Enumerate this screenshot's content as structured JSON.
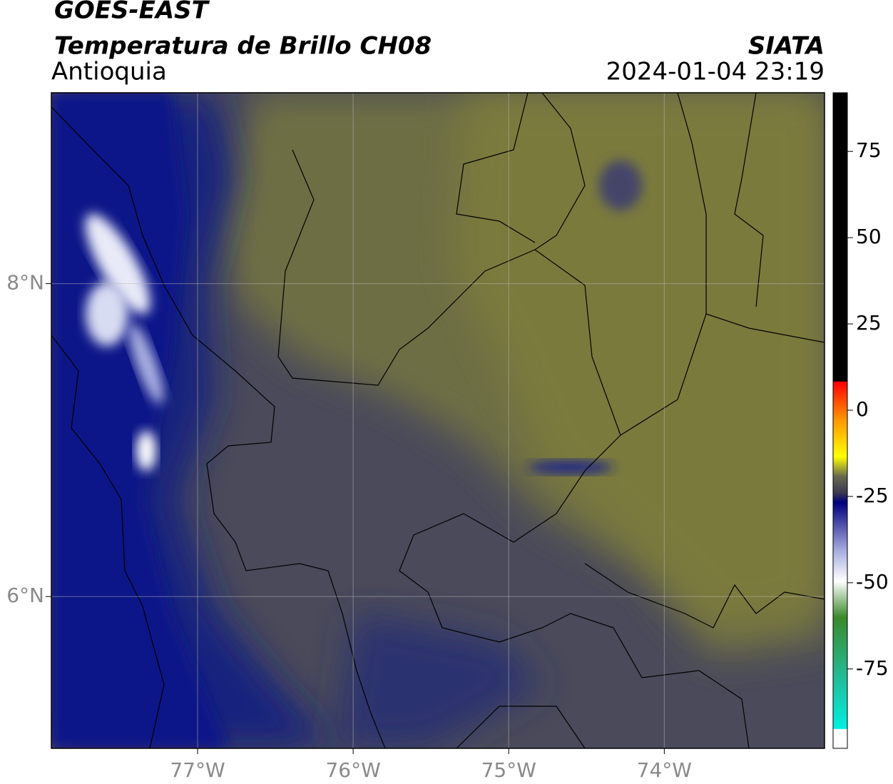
{
  "header": {
    "title": "GOES-EAST",
    "subtitle": "Temperatura de Brillo CH08",
    "region": "Antioquia",
    "source": "SIATA",
    "timestamp": "2024-01-04 23:19"
  },
  "map": {
    "xlim": [
      -77.94,
      -72.97
    ],
    "ylim": [
      5.03,
      9.22
    ],
    "xticks": [
      {
        "value": -77,
        "label": "77°W"
      },
      {
        "value": -76,
        "label": "76°W"
      },
      {
        "value": -75,
        "label": "75°W"
      },
      {
        "value": -74,
        "label": "74°W"
      }
    ],
    "yticks": [
      {
        "value": 6,
        "label": "6°N"
      },
      {
        "value": 8,
        "label": "8°N"
      }
    ],
    "grid": true
  },
  "colorbar": {
    "lim": [
      -98,
      92
    ],
    "ticks": [
      -75,
      -50,
      -25,
      0,
      25,
      50,
      75
    ]
  }
}
